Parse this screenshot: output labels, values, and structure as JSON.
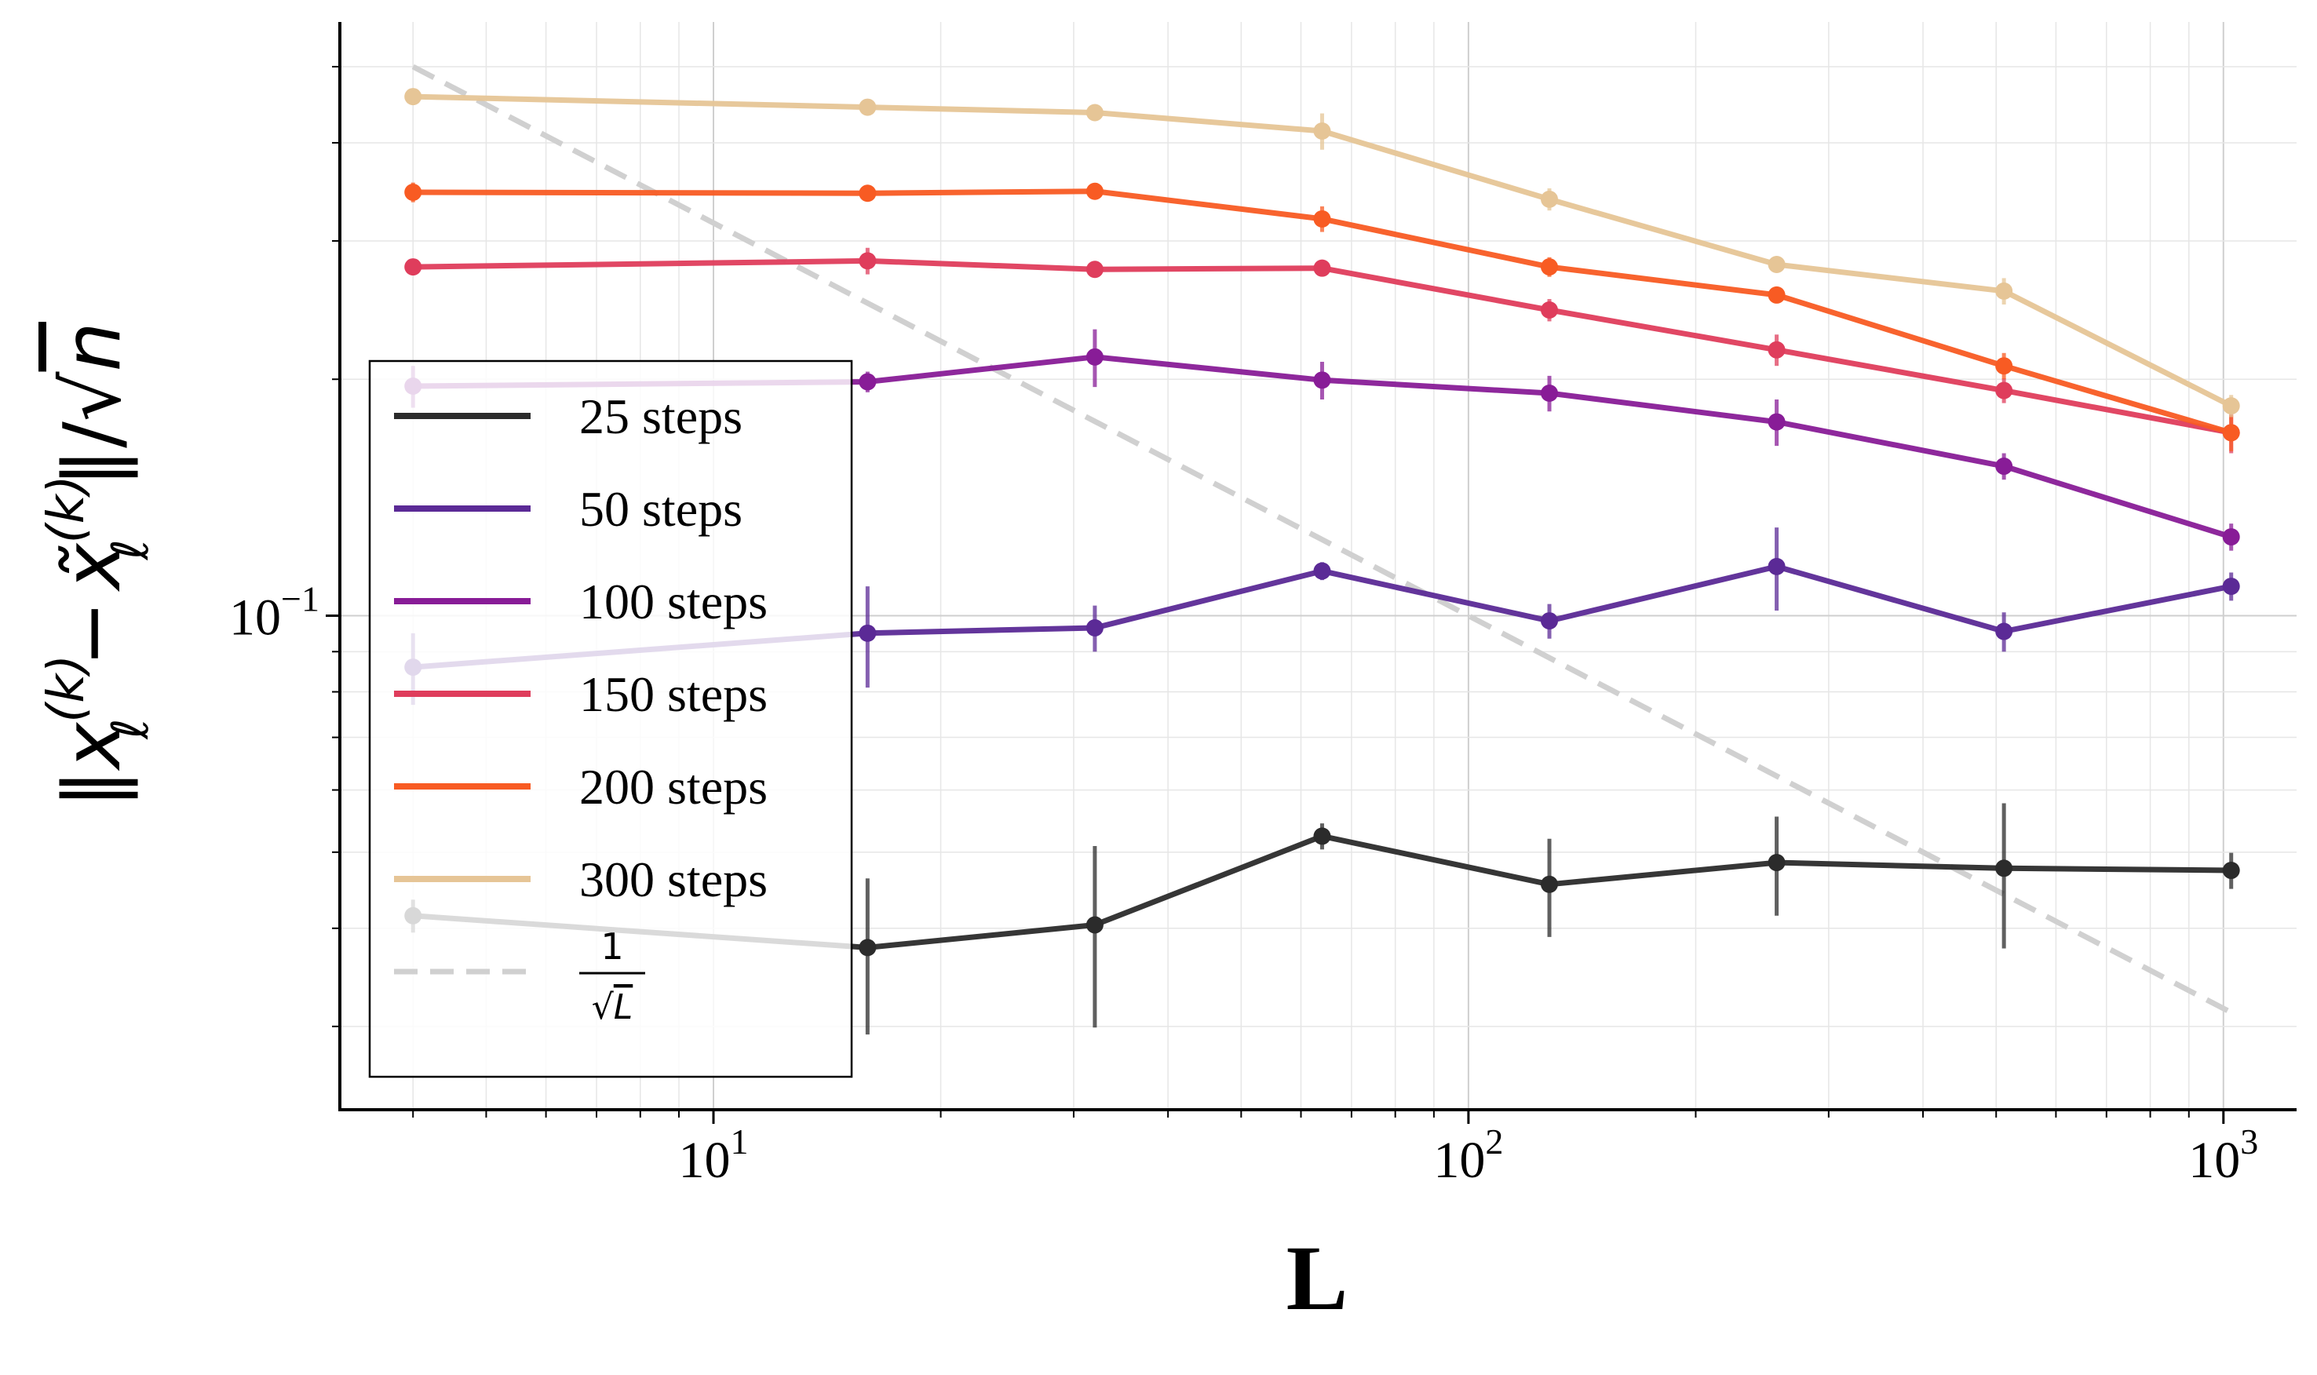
{
  "chart_data": {
    "type": "line",
    "scale": "log-log",
    "title": "",
    "xlabel": "L",
    "ylabel": "‖x_ℓ^(k) − x̃_ℓ^(k)‖/√n",
    "ylabel_parts": {
      "norm_open": "‖",
      "x": "x",
      "sub": "ℓ",
      "sup": "(k)",
      "minus": "−",
      "xtilde": "x̃",
      "norm_close": "‖/√",
      "n": "n"
    },
    "xlim": [
      3.2,
      1250
    ],
    "ylim": [
      0.0235,
      0.57
    ],
    "xticks": [
      {
        "value": 10,
        "base": "10",
        "exp": "1"
      },
      {
        "value": 100,
        "base": "10",
        "exp": "2"
      },
      {
        "value": 1000,
        "base": "10",
        "exp": "3"
      }
    ],
    "yticks": [
      {
        "value": 0.1,
        "base": "10",
        "exp": "−1"
      }
    ],
    "grid": true,
    "legend_position": "lower-left",
    "x": [
      4,
      16,
      32,
      64,
      128,
      256,
      512,
      1024
    ],
    "series": [
      {
        "name": "25 steps",
        "color": "#2b2b2b",
        "values": [
          0.0415,
          0.0378,
          0.0404,
          0.0524,
          0.0455,
          0.0485,
          0.0477,
          0.0474
        ],
        "errors": [
          0.002,
          0.0085,
          0.0105,
          0.002,
          0.0065,
          0.007,
          0.01,
          0.0025
        ]
      },
      {
        "name": "50 steps",
        "color": "#5b2a96",
        "values": [
          0.086,
          0.095,
          0.0965,
          0.114,
          0.0985,
          0.1155,
          0.0955,
          0.109
        ],
        "errors": [
          0.009,
          0.014,
          0.0065,
          0.003,
          0.005,
          0.014,
          0.0055,
          0.0045
        ]
      },
      {
        "name": "100 steps",
        "color": "#881c97",
        "values": [
          0.196,
          0.1985,
          0.2135,
          0.1995,
          0.192,
          0.1765,
          0.155,
          0.126
        ],
        "errors": [
          0.012,
          0.006,
          0.018,
          0.011,
          0.01,
          0.012,
          0.006,
          0.005
        ]
      },
      {
        "name": "150 steps",
        "color": "#df3d5c",
        "values": [
          0.278,
          0.283,
          0.276,
          0.277,
          0.245,
          0.218,
          0.1935,
          0.171
        ],
        "errors": [
          0.006,
          0.011,
          0.004,
          0.004,
          0.008,
          0.01,
          0.007,
          0.01
        ]
      },
      {
        "name": "200 steps",
        "color": "#f85b23",
        "values": [
          0.346,
          0.345,
          0.347,
          0.32,
          0.278,
          0.256,
          0.208,
          0.171
        ],
        "errors": [
          0.01,
          0.004,
          0.006,
          0.012,
          0.008,
          0.004,
          0.008,
          0.009
        ]
      },
      {
        "name": "300 steps",
        "color": "#e6c596",
        "values": [
          0.458,
          0.444,
          0.437,
          0.414,
          0.339,
          0.28,
          0.259,
          0.185
        ],
        "errors": [
          0.006,
          0.005,
          0.007,
          0.022,
          0.011,
          0.006,
          0.01,
          0.006
        ]
      }
    ],
    "reference": {
      "name": "1/√L",
      "label_numerator": "1",
      "label_denominator": "L",
      "label_root": "√",
      "color": "#d0d0d0",
      "x": [
        4,
        1024
      ],
      "values": [
        0.5,
        0.03125
      ]
    }
  }
}
